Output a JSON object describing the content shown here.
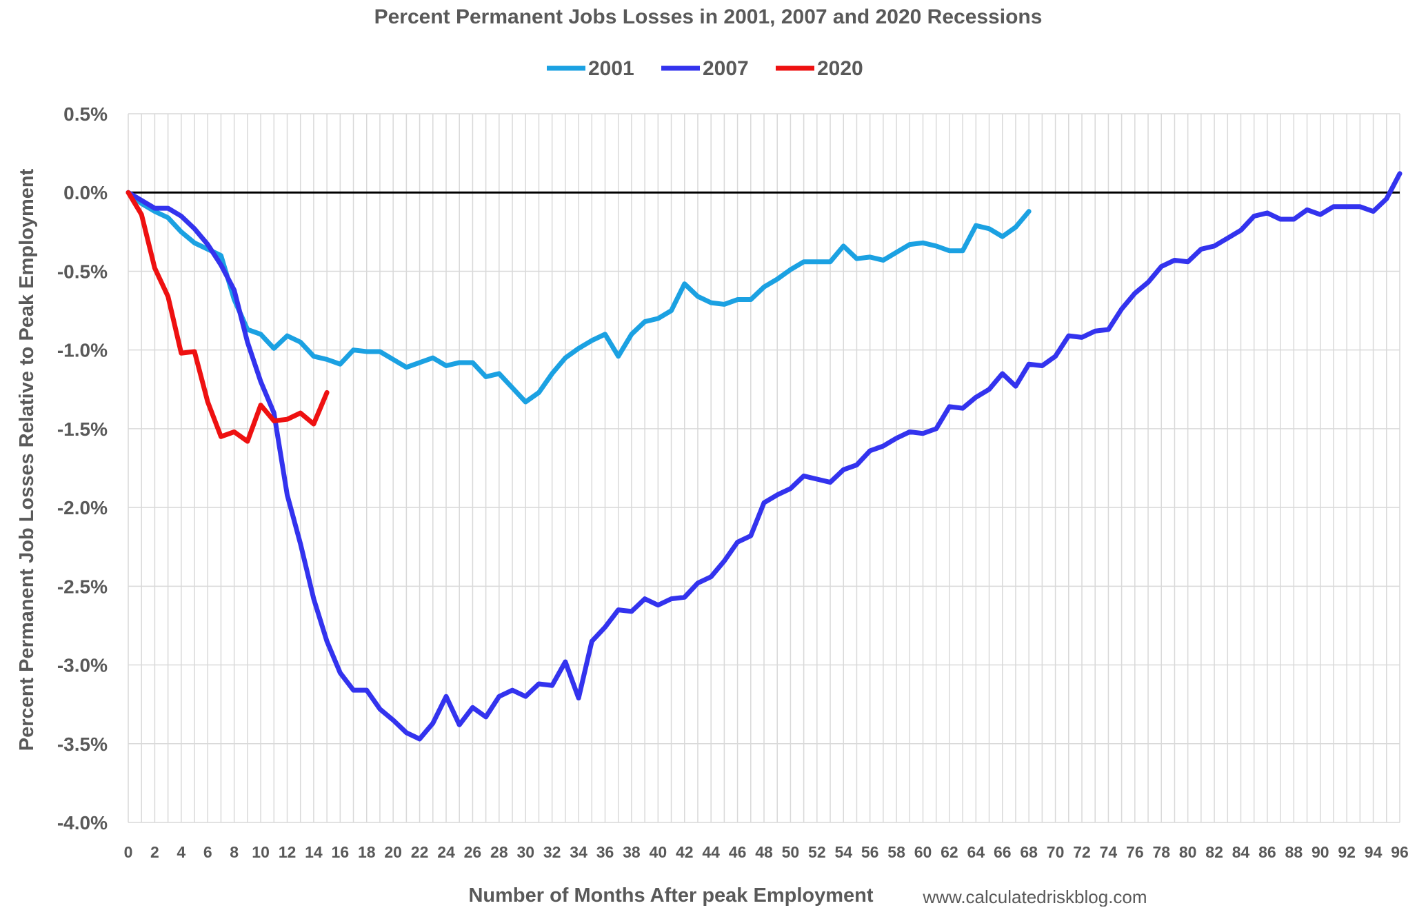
{
  "chart_data": {
    "type": "line",
    "title": "Percent Permanent Jobs Losses in 2001, 2007 and 2020 Recessions",
    "xlabel": "Number of Months After peak Employment",
    "ylabel": "Percent Permanent Job Losses Relative to Peak Employment",
    "source": "www.calculatedriskblog.com",
    "xlim": [
      0,
      96
    ],
    "ylim": [
      -4.0,
      0.5
    ],
    "x_ticks": [
      0,
      2,
      4,
      6,
      8,
      10,
      12,
      14,
      16,
      18,
      20,
      22,
      24,
      26,
      28,
      30,
      32,
      34,
      36,
      38,
      40,
      42,
      44,
      46,
      48,
      50,
      52,
      54,
      56,
      58,
      60,
      62,
      64,
      66,
      68,
      70,
      72,
      74,
      76,
      78,
      80,
      82,
      84,
      86,
      88,
      90,
      92,
      94,
      96
    ],
    "y_ticks": [
      0.5,
      0.0,
      -0.5,
      -1.0,
      -1.5,
      -2.0,
      -2.5,
      -3.0,
      -3.5,
      -4.0
    ],
    "y_tick_labels": [
      "0.5%",
      "0.0%",
      "-0.5%",
      "-1.0%",
      "-1.5%",
      "-2.0%",
      "-2.5%",
      "-3.0%",
      "-3.5%",
      "-4.0%"
    ],
    "grid": "vertical and horizontal",
    "legend_position": "top-center",
    "series": [
      {
        "name": "2001",
        "color": "#1ba1e2",
        "values": [
          0.0,
          -0.07,
          -0.12,
          -0.16,
          -0.25,
          -0.32,
          -0.36,
          -0.4,
          -0.68,
          -0.87,
          -0.9,
          -0.99,
          -0.91,
          -0.95,
          -1.04,
          -1.06,
          -1.09,
          -1.0,
          -1.01,
          -1.01,
          -1.06,
          -1.11,
          -1.08,
          -1.05,
          -1.1,
          -1.08,
          -1.08,
          -1.17,
          -1.15,
          -1.24,
          -1.33,
          -1.27,
          -1.15,
          -1.05,
          -0.99,
          -0.94,
          -0.9,
          -1.04,
          -0.9,
          -0.82,
          -0.8,
          -0.75,
          -0.58,
          -0.66,
          -0.7,
          -0.71,
          -0.68,
          -0.68,
          -0.6,
          -0.55,
          -0.49,
          -0.44,
          -0.44,
          -0.44,
          -0.34,
          -0.42,
          -0.41,
          -0.43,
          -0.38,
          -0.33,
          -0.32,
          -0.34,
          -0.37,
          -0.37,
          -0.21,
          -0.23,
          -0.28,
          -0.22,
          -0.12
        ]
      },
      {
        "name": "2007",
        "color": "#3333ee",
        "values": [
          0.0,
          -0.05,
          -0.1,
          -0.1,
          -0.15,
          -0.23,
          -0.33,
          -0.46,
          -0.62,
          -0.95,
          -1.2,
          -1.4,
          -1.92,
          -2.23,
          -2.58,
          -2.85,
          -3.05,
          -3.16,
          -3.16,
          -3.28,
          -3.35,
          -3.43,
          -3.47,
          -3.37,
          -3.2,
          -3.38,
          -3.27,
          -3.33,
          -3.2,
          -3.16,
          -3.2,
          -3.12,
          -3.13,
          -2.98,
          -3.21,
          -2.85,
          -2.76,
          -2.65,
          -2.66,
          -2.58,
          -2.62,
          -2.58,
          -2.57,
          -2.48,
          -2.44,
          -2.34,
          -2.22,
          -2.18,
          -1.97,
          -1.92,
          -1.88,
          -1.8,
          -1.82,
          -1.84,
          -1.76,
          -1.73,
          -1.64,
          -1.61,
          -1.56,
          -1.52,
          -1.53,
          -1.5,
          -1.36,
          -1.37,
          -1.3,
          -1.25,
          -1.15,
          -1.23,
          -1.09,
          -1.1,
          -1.04,
          -0.91,
          -0.92,
          -0.88,
          -0.87,
          -0.74,
          -0.64,
          -0.57,
          -0.47,
          -0.43,
          -0.44,
          -0.36,
          -0.34,
          -0.29,
          -0.24,
          -0.15,
          -0.13,
          -0.17,
          -0.17,
          -0.11,
          -0.14,
          -0.09,
          -0.09,
          -0.09,
          -0.12,
          -0.04,
          0.12
        ]
      },
      {
        "name": "2020",
        "color": "#ee1111",
        "values": [
          0.0,
          -0.14,
          -0.48,
          -0.66,
          -1.02,
          -1.01,
          -1.33,
          -1.55,
          -1.52,
          -1.58,
          -1.35,
          -1.45,
          -1.44,
          -1.4,
          -1.47,
          -1.27
        ]
      }
    ]
  }
}
